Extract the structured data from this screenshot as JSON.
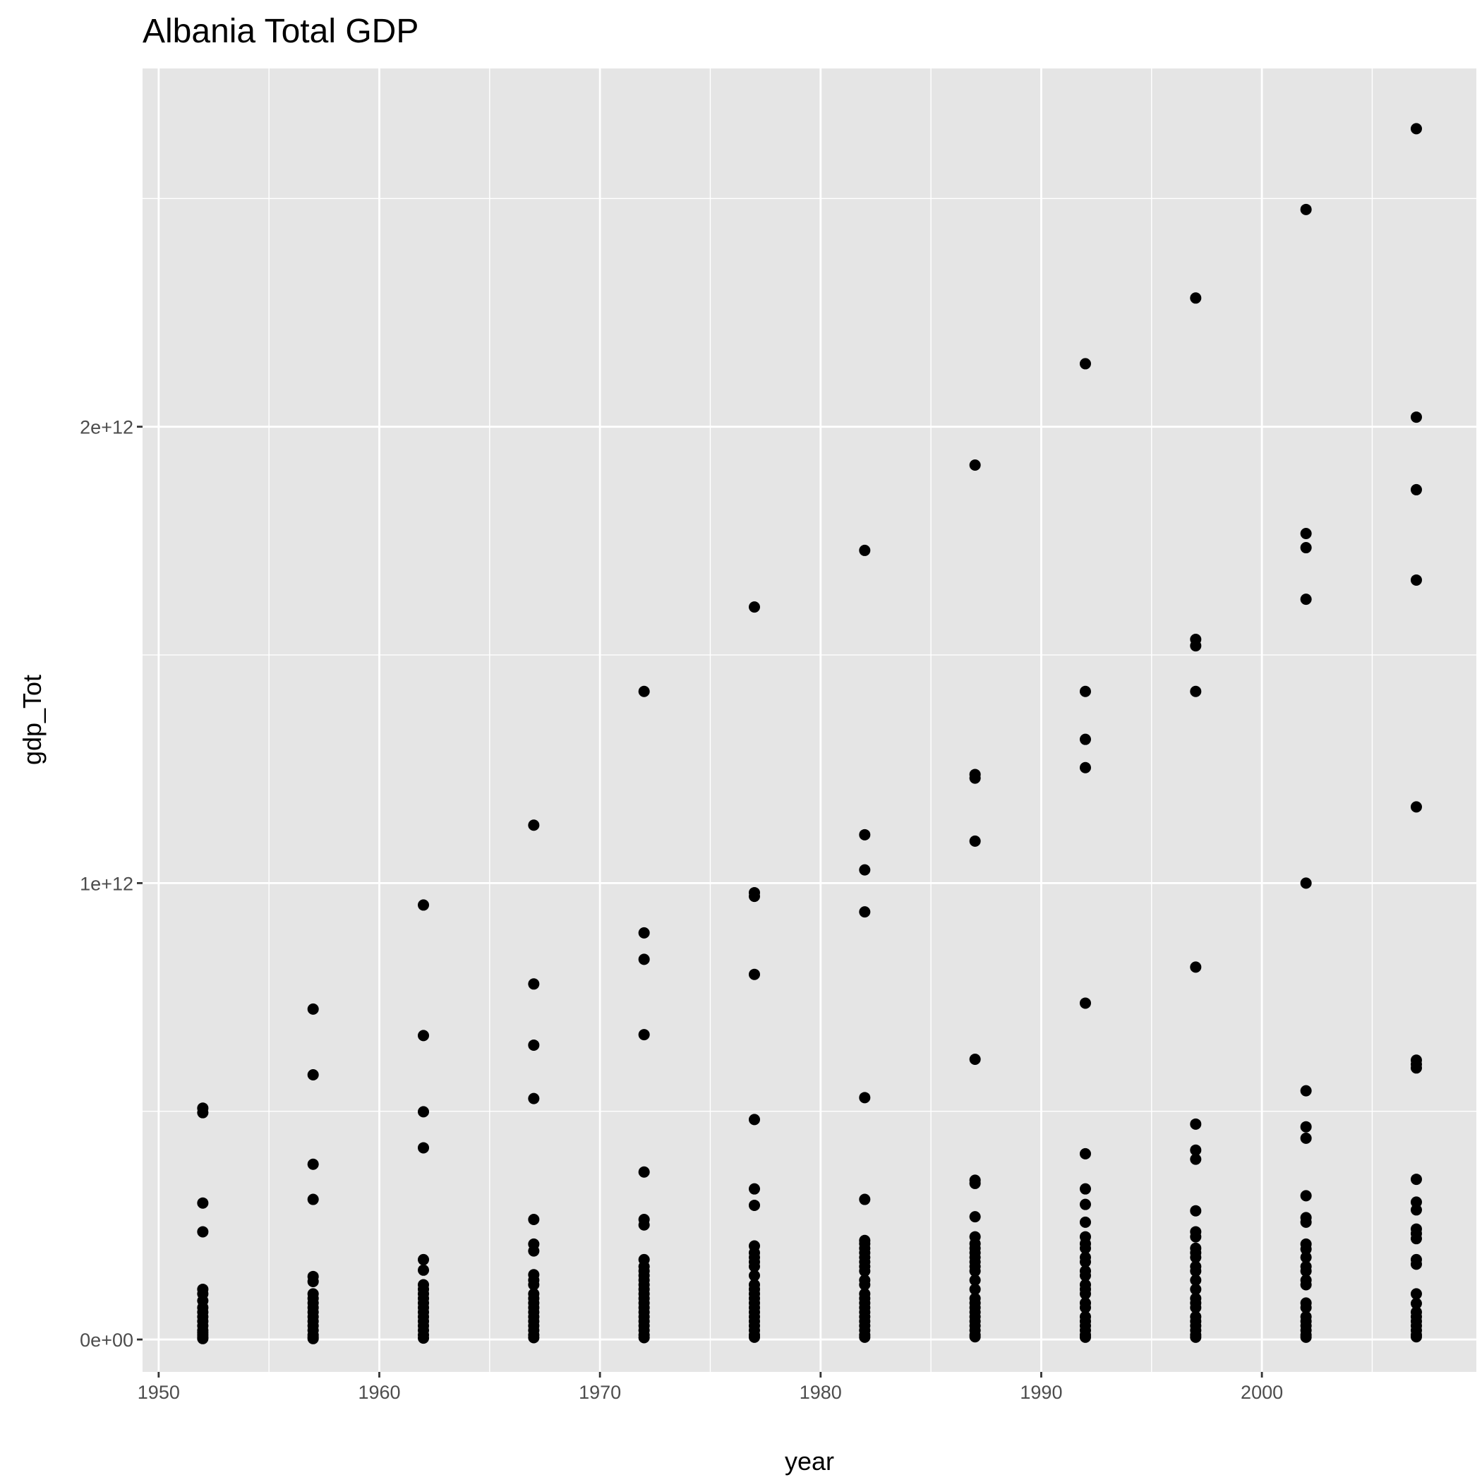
{
  "chart_data": {
    "type": "scatter",
    "title": "Albania Total GDP",
    "x_label": "year",
    "y_label": "gdp_Tot",
    "color": "#000000",
    "grid": true,
    "xlim": [
      1949.27,
      2009.72
    ],
    "ylim": [
      -71000000000.0,
      2785000000000.0
    ],
    "xticks": [
      1950,
      1960,
      1970,
      1980,
      1990,
      2000
    ],
    "xminor": [
      1955,
      1965,
      1975,
      1985,
      1995,
      2005
    ],
    "yticks": [
      {
        "value": 0,
        "label": "0e+00"
      },
      {
        "value": 1000000000000.0,
        "label": "1e+12"
      },
      {
        "value": 2000000000000.0,
        "label": "2e+12"
      }
    ],
    "yminor": [
      500000000000.0,
      1500000000000.0,
      2500000000000.0
    ],
    "x": [
      1952,
      1952,
      1952,
      1952,
      1952,
      1952,
      1952,
      1952,
      1952,
      1952,
      1952,
      1952,
      1952,
      1952,
      1952,
      1952,
      1952,
      1957,
      1957,
      1957,
      1957,
      1957,
      1957,
      1957,
      1957,
      1957,
      1957,
      1957,
      1957,
      1957,
      1957,
      1957,
      1957,
      1957,
      1957,
      1962,
      1962,
      1962,
      1962,
      1962,
      1962,
      1962,
      1962,
      1962,
      1962,
      1962,
      1962,
      1962,
      1962,
      1962,
      1962,
      1962,
      1962,
      1962,
      1967,
      1967,
      1967,
      1967,
      1967,
      1967,
      1967,
      1967,
      1967,
      1967,
      1967,
      1967,
      1967,
      1967,
      1967,
      1967,
      1967,
      1967,
      1967,
      1967,
      1967,
      1972,
      1972,
      1972,
      1972,
      1972,
      1972,
      1972,
      1972,
      1972,
      1972,
      1972,
      1972,
      1972,
      1972,
      1972,
      1972,
      1972,
      1972,
      1972,
      1972,
      1972,
      1972,
      1972,
      1972,
      1972,
      1977,
      1977,
      1977,
      1977,
      1977,
      1977,
      1977,
      1977,
      1977,
      1977,
      1977,
      1977,
      1977,
      1977,
      1977,
      1977,
      1977,
      1977,
      1977,
      1977,
      1977,
      1977,
      1977,
      1977,
      1977,
      1977,
      1982,
      1982,
      1982,
      1982,
      1982,
      1982,
      1982,
      1982,
      1982,
      1982,
      1982,
      1982,
      1982,
      1982,
      1982,
      1982,
      1982,
      1982,
      1982,
      1982,
      1982,
      1982,
      1982,
      1982,
      1982,
      1982,
      1982,
      1987,
      1987,
      1987,
      1987,
      1987,
      1987,
      1987,
      1987,
      1987,
      1987,
      1987,
      1987,
      1987,
      1987,
      1987,
      1987,
      1987,
      1987,
      1987,
      1987,
      1987,
      1987,
      1987,
      1987,
      1987,
      1987,
      1987,
      1987,
      1992,
      1992,
      1992,
      1992,
      1992,
      1992,
      1992,
      1992,
      1992,
      1992,
      1992,
      1992,
      1992,
      1992,
      1992,
      1992,
      1992,
      1992,
      1992,
      1992,
      1992,
      1992,
      1992,
      1992,
      1992,
      1992,
      1992,
      1997,
      1997,
      1997,
      1997,
      1997,
      1997,
      1997,
      1997,
      1997,
      1997,
      1997,
      1997,
      1997,
      1997,
      1997,
      1997,
      1997,
      1997,
      1997,
      1997,
      1997,
      1997,
      1997,
      1997,
      1997,
      1997,
      1997,
      2002,
      2002,
      2002,
      2002,
      2002,
      2002,
      2002,
      2002,
      2002,
      2002,
      2002,
      2002,
      2002,
      2002,
      2002,
      2002,
      2002,
      2002,
      2002,
      2002,
      2002,
      2002,
      2002,
      2002,
      2002,
      2002,
      2007,
      2007,
      2007,
      2007,
      2007,
      2007,
      2007,
      2007,
      2007,
      2007,
      2007,
      2007,
      2007,
      2007,
      2007,
      2007,
      2007,
      2007,
      2007,
      2007,
      2007,
      2007,
      2007,
      2007,
      2007
    ],
    "values": [
      507000000000.0,
      497000000000.0,
      299000000000.0,
      236000000000.0,
      110000000000.0,
      100000000000.0,
      85000000000.0,
      70000000000.0,
      60000000000.0,
      50000000000.0,
      40000000000.0,
      30000000000.0,
      20000000000.0,
      15000000000.0,
      10000000000.0,
      5000000000.0,
      2000000000.0,
      724000000000.0,
      580000000000.0,
      384000000000.0,
      307000000000.0,
      138000000000.0,
      127000000000.0,
      100000000000.0,
      90000000000.0,
      80000000000.0,
      70000000000.0,
      60000000000.0,
      50000000000.0,
      40000000000.0,
      30000000000.0,
      20000000000.0,
      10000000000.0,
      5000000000.0,
      2000000000.0,
      952000000000.0,
      666000000000.0,
      499000000000.0,
      420000000000.0,
      175000000000.0,
      152000000000.0,
      120000000000.0,
      110000000000.0,
      100000000000.0,
      90000000000.0,
      80000000000.0,
      70000000000.0,
      60000000000.0,
      50000000000.0,
      40000000000.0,
      30000000000.0,
      20000000000.0,
      10000000000.0,
      3000000000.0,
      1127000000000.0,
      779000000000.0,
      645000000000.0,
      528000000000.0,
      263000000000.0,
      209000000000.0,
      194000000000.0,
      142000000000.0,
      130000000000.0,
      120000000000.0,
      100000000000.0,
      90000000000.0,
      80000000000.0,
      70000000000.0,
      60000000000.0,
      50000000000.0,
      40000000000.0,
      30000000000.0,
      20000000000.0,
      10000000000.0,
      4000000000.0,
      1420000000000.0,
      891000000000.0,
      833000000000.0,
      668000000000.0,
      367000000000.0,
      263000000000.0,
      251000000000.0,
      175000000000.0,
      160000000000.0,
      150000000000.0,
      140000000000.0,
      130000000000.0,
      120000000000.0,
      110000000000.0,
      100000000000.0,
      90000000000.0,
      80000000000.0,
      70000000000.0,
      60000000000.0,
      50000000000.0,
      40000000000.0,
      30000000000.0,
      20000000000.0,
      10000000000.0,
      4000000000.0,
      1605000000000.0,
      979000000000.0,
      971000000000.0,
      800000000000.0,
      482000000000.0,
      330000000000.0,
      294000000000.0,
      205000000000.0,
      190000000000.0,
      180000000000.0,
      170000000000.0,
      160000000000.0,
      140000000000.0,
      120000000000.0,
      110000000000.0,
      100000000000.0,
      90000000000.0,
      80000000000.0,
      70000000000.0,
      60000000000.0,
      50000000000.0,
      40000000000.0,
      30000000000.0,
      20000000000.0,
      10000000000.0,
      5000000000.0,
      1729000000000.0,
      1106000000000.0,
      1029000000000.0,
      937000000000.0,
      530000000000.0,
      307000000000.0,
      217000000000.0,
      210000000000.0,
      200000000000.0,
      190000000000.0,
      180000000000.0,
      170000000000.0,
      160000000000.0,
      150000000000.0,
      130000000000.0,
      120000000000.0,
      100000000000.0,
      90000000000.0,
      80000000000.0,
      70000000000.0,
      60000000000.0,
      50000000000.0,
      40000000000.0,
      30000000000.0,
      20000000000.0,
      10000000000.0,
      5000000000.0,
      1916000000000.0,
      1238000000000.0,
      1230000000000.0,
      1092000000000.0,
      614000000000.0,
      349000000000.0,
      342000000000.0,
      269000000000.0,
      225000000000.0,
      210000000000.0,
      200000000000.0,
      190000000000.0,
      180000000000.0,
      170000000000.0,
      160000000000.0,
      150000000000.0,
      130000000000.0,
      110000000000.0,
      90000000000.0,
      80000000000.0,
      70000000000.0,
      60000000000.0,
      50000000000.0,
      40000000000.0,
      30000000000.0,
      20000000000.0,
      10000000000.0,
      6000000000.0,
      2138000000000.0,
      1420000000000.0,
      1315000000000.0,
      1253000000000.0,
      737000000000.0,
      407000000000.0,
      330000000000.0,
      296000000000.0,
      257000000000.0,
      225000000000.0,
      210000000000.0,
      200000000000.0,
      180000000000.0,
      170000000000.0,
      150000000000.0,
      140000000000.0,
      120000000000.0,
      110000000000.0,
      100000000000.0,
      80000000000.0,
      70000000000.0,
      50000000000.0,
      40000000000.0,
      30000000000.0,
      20000000000.0,
      10000000000.0,
      5000000000.0,
      2282000000000.0,
      1534000000000.0,
      1520000000000.0,
      1420000000000.0,
      816000000000.0,
      472000000000.0,
      415000000000.0,
      395000000000.0,
      282000000000.0,
      236000000000.0,
      225000000000.0,
      200000000000.0,
      190000000000.0,
      180000000000.0,
      160000000000.0,
      150000000000.0,
      130000000000.0,
      110000000000.0,
      90000000000.0,
      80000000000.0,
      70000000000.0,
      50000000000.0,
      40000000000.0,
      30000000000.0,
      20000000000.0,
      10000000000.0,
      5000000000.0,
      2476000000000.0,
      1766000000000.0,
      1735000000000.0,
      1622000000000.0,
      1000000000000.0,
      545000000000.0,
      466000000000.0,
      441000000000.0,
      315000000000.0,
      267000000000.0,
      257000000000.0,
      209000000000.0,
      198000000000.0,
      180000000000.0,
      160000000000.0,
      150000000000.0,
      130000000000.0,
      120000000000.0,
      80000000000.0,
      70000000000.0,
      50000000000.0,
      40000000000.0,
      30000000000.0,
      20000000000.0,
      10000000000.0,
      5000000000.0,
      2653000000000.0,
      2021000000000.0,
      1862000000000.0,
      1664000000000.0,
      1167000000000.0,
      612000000000.0,
      603000000000.0,
      595000000000.0,
      351000000000.0,
      301000000000.0,
      284000000000.0,
      242000000000.0,
      232000000000.0,
      221000000000.0,
      175000000000.0,
      165000000000.0,
      100000000000.0,
      79000000000.0,
      60000000000.0,
      50000000000.0,
      40000000000.0,
      30000000000.0,
      20000000000.0,
      10000000000.0,
      6000000000.0
    ]
  }
}
